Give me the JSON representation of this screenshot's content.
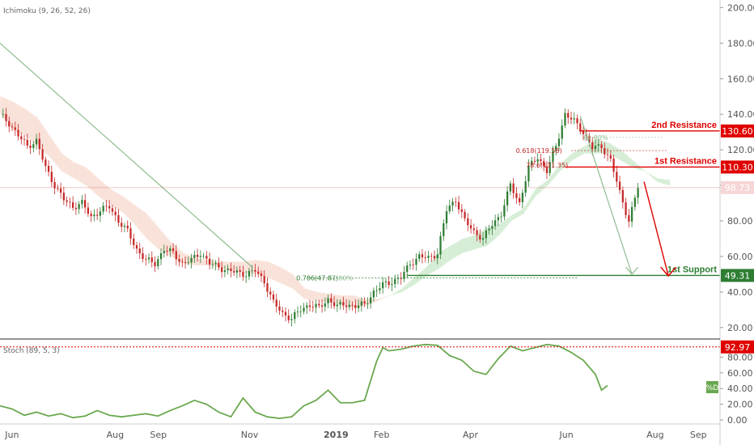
{
  "indicators": {
    "ichimoku_label": "Ichimoku (9, 26, 52, 26)",
    "stoch_label": "Stoch (89, 5, 3)"
  },
  "chart_data": [
    {
      "type": "candlestick",
      "x_ticks": [
        "Jun",
        "Aug",
        "Sep",
        "Nov",
        "2019",
        "Feb",
        "Apr",
        "Jun",
        "Aug",
        "Sep"
      ],
      "y_ticks": [
        "200.00",
        "180.00",
        "160.00",
        "140.00",
        "120.00",
        "100.00",
        "80.00",
        "60.00",
        "40.00",
        "20.00"
      ],
      "ylim": [
        14,
        202
      ],
      "grid": false,
      "price_path": [
        [
          0,
          140
        ],
        [
          3,
          135
        ],
        [
          6,
          128
        ],
        [
          9,
          122
        ],
        [
          12,
          125
        ],
        [
          15,
          110
        ],
        [
          18,
          100
        ],
        [
          21,
          92
        ],
        [
          24,
          88
        ],
        [
          27,
          90
        ],
        [
          30,
          82
        ],
        [
          33,
          86
        ],
        [
          36,
          88
        ],
        [
          39,
          80
        ],
        [
          42,
          74
        ],
        [
          45,
          64
        ],
        [
          48,
          58
        ],
        [
          51,
          56
        ],
        [
          54,
          64
        ],
        [
          57,
          62
        ],
        [
          60,
          56
        ],
        [
          63,
          58
        ],
        [
          66,
          62
        ],
        [
          69,
          56
        ],
        [
          72,
          54
        ],
        [
          75,
          52
        ],
        [
          78,
          51
        ],
        [
          81,
          50
        ],
        [
          84,
          52
        ],
        [
          87,
          46
        ],
        [
          90,
          34
        ],
        [
          93,
          28
        ],
        [
          96,
          25
        ],
        [
          99,
          30
        ],
        [
          102,
          33
        ],
        [
          105,
          31
        ],
        [
          108,
          36
        ],
        [
          111,
          32
        ],
        [
          114,
          33
        ],
        [
          117,
          32
        ],
        [
          120,
          33
        ],
        [
          123,
          40
        ],
        [
          126,
          44
        ],
        [
          129,
          46
        ],
        [
          132,
          48
        ],
        [
          135,
          56
        ],
        [
          138,
          60
        ],
        [
          141,
          59
        ],
        [
          144,
          62
        ],
        [
          147,
          86
        ],
        [
          150,
          92
        ],
        [
          153,
          80
        ],
        [
          156,
          74
        ],
        [
          159,
          70
        ],
        [
          162,
          78
        ],
        [
          165,
          84
        ],
        [
          168,
          100
        ],
        [
          171,
          90
        ],
        [
          174,
          110
        ],
        [
          177,
          116
        ],
        [
          180,
          108
        ],
        [
          183,
          122
        ],
        [
          186,
          140
        ],
        [
          189,
          136
        ],
        [
          192,
          130
        ],
        [
          195,
          121
        ],
        [
          198,
          122
        ],
        [
          201,
          114
        ],
        [
          204,
          96
        ],
        [
          207,
          80
        ],
        [
          210,
          99
        ]
      ],
      "cloud_a": [
        [
          0,
          140
        ],
        [
          4,
          131
        ],
        [
          8,
          128
        ],
        [
          12,
          122
        ],
        [
          16,
          116
        ],
        [
          20,
          108
        ],
        [
          24,
          104
        ],
        [
          28,
          100
        ],
        [
          32,
          94
        ],
        [
          36,
          89
        ],
        [
          40,
          85
        ],
        [
          44,
          78
        ],
        [
          48,
          70
        ],
        [
          52,
          64
        ],
        [
          56,
          60
        ],
        [
          60,
          56
        ],
        [
          64,
          55
        ],
        [
          68,
          55
        ],
        [
          72,
          54
        ],
        [
          76,
          52
        ],
        [
          80,
          51
        ],
        [
          84,
          50
        ],
        [
          88,
          48
        ],
        [
          92,
          45
        ],
        [
          96,
          42
        ],
        [
          100,
          36
        ],
        [
          104,
          35
        ],
        [
          108,
          34
        ],
        [
          112,
          33
        ],
        [
          116,
          31
        ],
        [
          120,
          32
        ],
        [
          124,
          35
        ],
        [
          128,
          38
        ],
        [
          132,
          42
        ],
        [
          136,
          48
        ],
        [
          140,
          54
        ],
        [
          144,
          62
        ],
        [
          148,
          66
        ],
        [
          152,
          70
        ],
        [
          156,
          72
        ],
        [
          160,
          76
        ],
        [
          164,
          78
        ],
        [
          168,
          83
        ],
        [
          172,
          87
        ],
        [
          176,
          98
        ],
        [
          180,
          103
        ],
        [
          184,
          112
        ],
        [
          188,
          118
        ],
        [
          192,
          122
        ],
        [
          196,
          126
        ],
        [
          200,
          124
        ],
        [
          204,
          120
        ],
        [
          208,
          114
        ],
        [
          212,
          108
        ],
        [
          216,
          104
        ],
        [
          220,
          103
        ]
      ],
      "cloud_b": [
        [
          0,
          150
        ],
        [
          4,
          147
        ],
        [
          8,
          143
        ],
        [
          12,
          138
        ],
        [
          16,
          128
        ],
        [
          20,
          118
        ],
        [
          24,
          113
        ],
        [
          28,
          110
        ],
        [
          32,
          104
        ],
        [
          36,
          98
        ],
        [
          40,
          94
        ],
        [
          44,
          89
        ],
        [
          48,
          84
        ],
        [
          52,
          76
        ],
        [
          56,
          68
        ],
        [
          60,
          62
        ],
        [
          64,
          59
        ],
        [
          68,
          58
        ],
        [
          72,
          57
        ],
        [
          76,
          57
        ],
        [
          80,
          57
        ],
        [
          84,
          58
        ],
        [
          88,
          57
        ],
        [
          92,
          54
        ],
        [
          96,
          50
        ],
        [
          100,
          42
        ],
        [
          104,
          40
        ],
        [
          108,
          39
        ],
        [
          112,
          38
        ],
        [
          116,
          38
        ],
        [
          120,
          36
        ],
        [
          124,
          36
        ],
        [
          128,
          38
        ],
        [
          132,
          40
        ],
        [
          136,
          44
        ],
        [
          140,
          49
        ],
        [
          144,
          53
        ],
        [
          148,
          58
        ],
        [
          152,
          62
        ],
        [
          156,
          64
        ],
        [
          160,
          66
        ],
        [
          164,
          72
        ],
        [
          168,
          80
        ],
        [
          172,
          84
        ],
        [
          176,
          94
        ],
        [
          180,
          100
        ],
        [
          184,
          108
        ],
        [
          188,
          114
        ],
        [
          192,
          118
        ],
        [
          196,
          118
        ],
        [
          200,
          118
        ],
        [
          204,
          114
        ],
        [
          208,
          110
        ],
        [
          212,
          108
        ],
        [
          216,
          102
        ],
        [
          220,
          100
        ]
      ],
      "trendline": [
        [
          0,
          180
        ],
        [
          83,
          54
        ]
      ],
      "fib_markers": [
        {
          "label": "0.786(47.87)",
          "color": "#2e7d32",
          "x": 97.5,
          "y": 47.87
        },
        {
          "label": "61.80%",
          "color": "#8fbc8f",
          "x": 108,
          "y": 47.87
        },
        {
          "label": "0.618(119.58)",
          "color": "#c62828",
          "x": 185,
          "y": 119.58
        },
        {
          "label": "78.6(111.35)",
          "color": "#c62828",
          "x": 187,
          "y": 111.35
        },
        {
          "label": "61.80%",
          "color": "#8fbc8f",
          "x": 192,
          "y": 127
        }
      ],
      "levels": [
        {
          "label": "2nd Resistance",
          "value": 130.6,
          "badge": "130.60",
          "color": "#e00000",
          "from": 191
        },
        {
          "label": "1st Resistance",
          "value": 110.3,
          "badge": "110.30",
          "color": "#e00000",
          "from": 186
        },
        {
          "label": "1st Support",
          "value": 49.31,
          "badge": "49.31",
          "color": "#2e7d32",
          "from": 134
        }
      ],
      "last_price": {
        "value": 98.73,
        "badge": "98.73"
      }
    },
    {
      "type": "line",
      "series": [
        {
          "values": [
            [
              0,
              18
            ],
            [
              4,
              14
            ],
            [
              8,
              6
            ],
            [
              12,
              10
            ],
            [
              16,
              5
            ],
            [
              20,
              8
            ],
            [
              24,
              3
            ],
            [
              28,
              5
            ],
            [
              32,
              12
            ],
            [
              36,
              6
            ],
            [
              40,
              4
            ],
            [
              44,
              6
            ],
            [
              48,
              8
            ],
            [
              52,
              5
            ],
            [
              56,
              12
            ],
            [
              60,
              18
            ],
            [
              64,
              25
            ],
            [
              68,
              20
            ],
            [
              72,
              10
            ],
            [
              76,
              4
            ],
            [
              80,
              28
            ],
            [
              84,
              10
            ],
            [
              88,
              4
            ],
            [
              92,
              2
            ],
            [
              96,
              4
            ],
            [
              100,
              18
            ],
            [
              104,
              25
            ],
            [
              108,
              38
            ],
            [
              112,
              22
            ],
            [
              116,
              22
            ],
            [
              120,
              25
            ],
            [
              124,
              75
            ],
            [
              126,
              92
            ],
            [
              128,
              88
            ],
            [
              132,
              90
            ],
            [
              136,
              94
            ],
            [
              140,
              96
            ],
            [
              144,
              95
            ],
            [
              148,
              82
            ],
            [
              152,
              76
            ],
            [
              156,
              62
            ],
            [
              160,
              58
            ],
            [
              164,
              78
            ],
            [
              168,
              94
            ],
            [
              172,
              88
            ],
            [
              176,
              92
            ],
            [
              180,
              96
            ],
            [
              184,
              94
            ],
            [
              188,
              86
            ],
            [
              192,
              76
            ],
            [
              196,
              58
            ],
            [
              198,
              38
            ],
            [
              200,
              44
            ]
          ]
        }
      ],
      "y_ticks": [
        "80.00",
        "60.00",
        "40.00",
        "20.00",
        "0.00"
      ],
      "ylim": [
        -3,
        102
      ],
      "level": {
        "value": 92.97,
        "badge": "92.97"
      },
      "legend_label": "%D"
    }
  ],
  "x_range": [
    0,
    237
  ],
  "colors": {
    "up": "#2e7d32",
    "down": "#c62828",
    "cloud": "rgba(76,175,80,0.18)",
    "cloud_bear": "rgba(230,150,120,0.22)",
    "stoch_line": "#6aa84f",
    "trend": "#8fbc8f"
  }
}
